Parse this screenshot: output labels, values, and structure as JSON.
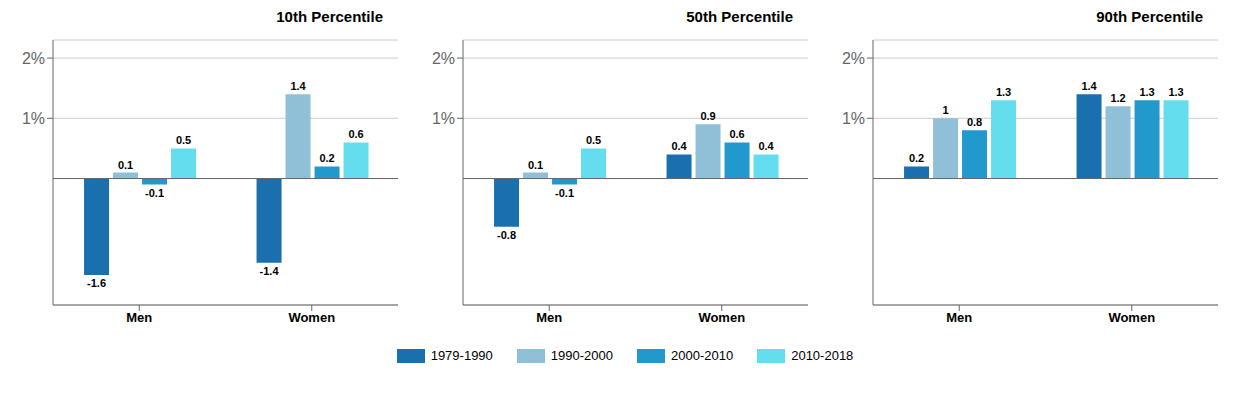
{
  "chart_data": [
    {
      "type": "bar",
      "title": "10th Percentile",
      "categories": [
        "Men",
        "Women"
      ],
      "series": [
        {
          "name": "1979-1990",
          "color": "#1a6faf",
          "values": [
            -1.6,
            -1.4
          ]
        },
        {
          "name": "1990-2000",
          "color": "#90bfd8",
          "values": [
            0.1,
            1.4
          ]
        },
        {
          "name": "2000-2010",
          "color": "#2299cc",
          "values": [
            -0.1,
            0.2
          ]
        },
        {
          "name": "2010-2018",
          "color": "#64ddee",
          "values": [
            0.5,
            0.6
          ]
        }
      ],
      "ylim": [
        -2.1,
        2.3
      ],
      "yticks": [
        {
          "value": 1.0,
          "label": "1%"
        },
        {
          "value": 2.0,
          "label": "2%"
        }
      ],
      "grid": true,
      "data_labels": true,
      "legend": "bottom"
    },
    {
      "type": "bar",
      "title": "50th Percentile",
      "categories": [
        "Men",
        "Women"
      ],
      "series": [
        {
          "name": "1979-1990",
          "color": "#1a6faf",
          "values": [
            -0.8,
            0.4
          ]
        },
        {
          "name": "1990-2000",
          "color": "#90bfd8",
          "values": [
            0.1,
            0.9
          ]
        },
        {
          "name": "2000-2010",
          "color": "#2299cc",
          "values": [
            -0.1,
            0.6
          ]
        },
        {
          "name": "2010-2018",
          "color": "#64ddee",
          "values": [
            0.5,
            0.4
          ]
        }
      ],
      "ylim": [
        -2.1,
        2.3
      ],
      "yticks": [
        {
          "value": 1.0,
          "label": "1%"
        },
        {
          "value": 2.0,
          "label": "2%"
        }
      ],
      "grid": true,
      "data_labels": true,
      "legend": "bottom"
    },
    {
      "type": "bar",
      "title": "90th Percentile",
      "categories": [
        "Men",
        "Women"
      ],
      "series": [
        {
          "name": "1979-1990",
          "color": "#1a6faf",
          "values": [
            0.2,
            1.4
          ]
        },
        {
          "name": "1990-2000",
          "color": "#90bfd8",
          "values": [
            1.0,
            1.2
          ]
        },
        {
          "name": "2000-2010",
          "color": "#2299cc",
          "values": [
            0.8,
            1.3
          ]
        },
        {
          "name": "2010-2018",
          "color": "#64ddee",
          "values": [
            1.3,
            1.3
          ]
        }
      ],
      "ylim": [
        -2.1,
        2.3
      ],
      "yticks": [
        {
          "value": 1.0,
          "label": "1%"
        },
        {
          "value": 2.0,
          "label": "2%"
        }
      ],
      "grid": true,
      "data_labels": true,
      "legend": "bottom"
    }
  ]
}
